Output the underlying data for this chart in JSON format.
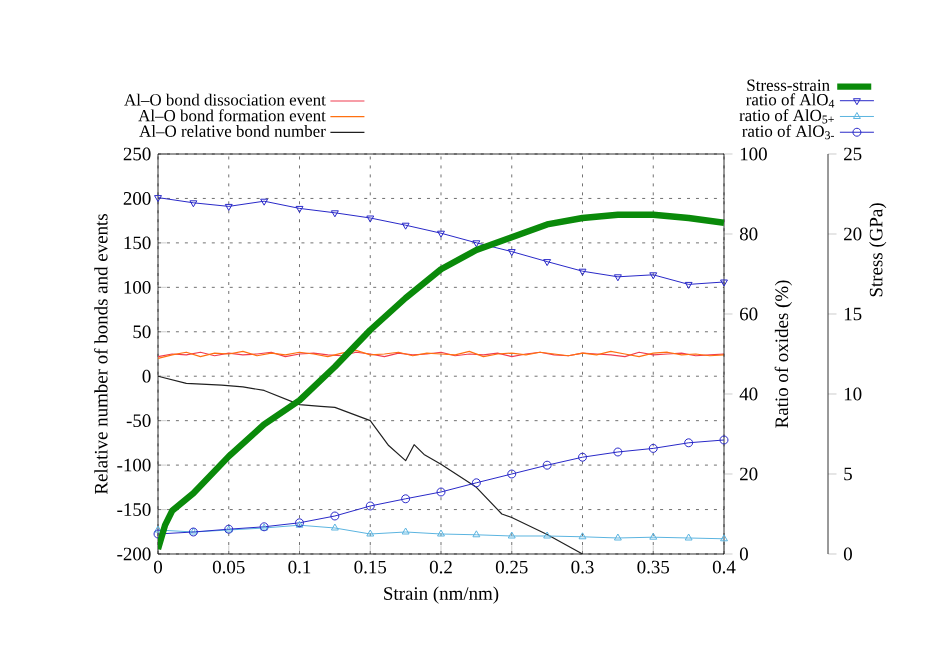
{
  "chart_data": {
    "type": "line",
    "xlabel": "Strain (nm/nm)",
    "ylabel": "Relative number of bonds and events",
    "y2label": "Ratio of oxides (%)",
    "y3label": "Stress (GPa)",
    "xlim": [
      0,
      0.4
    ],
    "xticks": [
      0,
      0.05,
      0.1,
      0.15,
      0.2,
      0.25,
      0.3,
      0.35,
      0.4
    ],
    "ylim": [
      -200,
      250
    ],
    "yticks": [
      -200,
      -150,
      -100,
      -50,
      0,
      50,
      100,
      150,
      200,
      250
    ],
    "y2lim": [
      0,
      100
    ],
    "y2ticks": [
      0,
      20,
      40,
      60,
      80,
      100
    ],
    "y3lim": [
      0,
      25
    ],
    "y3ticks": [
      0,
      5,
      10,
      15,
      20,
      25
    ],
    "grid": true,
    "legend": "top",
    "series": [
      {
        "name": "Al–O bond dissociation event",
        "color": "#f03c50",
        "marker": "none",
        "x": [
          0,
          0.01,
          0.02,
          0.03,
          0.04,
          0.05,
          0.06,
          0.07,
          0.08,
          0.09,
          0.1,
          0.11,
          0.12,
          0.13,
          0.14,
          0.15,
          0.16,
          0.17,
          0.18,
          0.19,
          0.2,
          0.21,
          0.22,
          0.23,
          0.24,
          0.25,
          0.26,
          0.27,
          0.28,
          0.29,
          0.3,
          0.31,
          0.32,
          0.33,
          0.34,
          0.35,
          0.36,
          0.37,
          0.38,
          0.39,
          0.4
        ],
        "values": [
          22,
          25,
          24,
          27,
          23,
          26,
          24,
          25,
          27,
          22,
          25,
          26,
          24,
          23,
          27,
          25,
          22,
          26,
          24,
          25,
          27,
          23,
          25,
          24,
          26,
          22,
          25,
          27,
          24,
          23,
          26,
          25,
          24,
          22,
          27,
          24,
          25,
          26,
          23,
          24,
          25
        ]
      },
      {
        "name": "Al–O bond formation event",
        "color": "#ff7010",
        "marker": "none",
        "x": [
          0,
          0.01,
          0.02,
          0.03,
          0.04,
          0.05,
          0.06,
          0.07,
          0.08,
          0.09,
          0.1,
          0.11,
          0.12,
          0.13,
          0.14,
          0.15,
          0.16,
          0.17,
          0.18,
          0.19,
          0.2,
          0.21,
          0.22,
          0.23,
          0.24,
          0.25,
          0.26,
          0.27,
          0.28,
          0.29,
          0.3,
          0.31,
          0.32,
          0.33,
          0.34,
          0.35,
          0.36,
          0.37,
          0.38,
          0.39,
          0.4
        ],
        "values": [
          20,
          24,
          27,
          22,
          26,
          25,
          28,
          23,
          26,
          24,
          27,
          25,
          22,
          26,
          29,
          24,
          25,
          27,
          23,
          26,
          25,
          24,
          28,
          22,
          25,
          26,
          24,
          27,
          25,
          23,
          26,
          24,
          28,
          25,
          22,
          26,
          27,
          24,
          25,
          23,
          24
        ]
      },
      {
        "name": "Al–O relative bond number",
        "color": "#202020",
        "marker": "none",
        "x": [
          0,
          0.02,
          0.045,
          0.06,
          0.075,
          0.1,
          0.115,
          0.125,
          0.15,
          0.163,
          0.175,
          0.181,
          0.188,
          0.2,
          0.225,
          0.243,
          0.25,
          0.275,
          0.3
        ],
        "values": [
          0,
          -8,
          -10,
          -12,
          -16,
          -32,
          -34,
          -35,
          -50,
          -78,
          -95,
          -77,
          -88,
          -99,
          -125,
          -155,
          -159,
          -178,
          -200
        ]
      },
      {
        "name": "ratio of AlO$_{4}$",
        "color": "#2828c8",
        "marker": "triangle",
        "axis": "y2",
        "x": [
          0,
          0.025,
          0.05,
          0.075,
          0.1,
          0.125,
          0.15,
          0.175,
          0.2,
          0.225,
          0.25,
          0.275,
          0.3,
          0.325,
          0.35,
          0.375,
          0.4
        ],
        "values": [
          89.1,
          87.8,
          86.9,
          88.2,
          86.4,
          85.3,
          84.0,
          82.2,
          80.2,
          77.8,
          75.6,
          73.1,
          70.7,
          69.3,
          69.8,
          67.4,
          68.0
        ]
      },
      {
        "name": "ratio of AlO$_{5+}$",
        "color": "#5ab4e0",
        "marker": "triangle",
        "axis": "y2",
        "x": [
          0,
          0.025,
          0.05,
          0.075,
          0.1,
          0.125,
          0.15,
          0.175,
          0.2,
          0.225,
          0.25,
          0.275,
          0.3,
          0.325,
          0.35,
          0.375,
          0.4
        ],
        "values": [
          6.0,
          5.5,
          6.0,
          6.5,
          7.2,
          6.5,
          5.0,
          5.5,
          5.0,
          4.8,
          4.5,
          4.5,
          4.3,
          4.0,
          4.2,
          4.0,
          3.8
        ]
      },
      {
        "name": "ratio of AlO$_{3-}$",
        "color": "#2828c8",
        "marker": "circle",
        "axis": "y2",
        "x": [
          0,
          0.025,
          0.05,
          0.075,
          0.1,
          0.125,
          0.15,
          0.175,
          0.2,
          0.225,
          0.25,
          0.275,
          0.3,
          0.325,
          0.35,
          0.375,
          0.4
        ],
        "values": [
          5.0,
          5.5,
          6.2,
          6.8,
          7.8,
          9.5,
          12.0,
          13.8,
          15.5,
          17.8,
          20.0,
          22.2,
          24.2,
          25.5,
          26.4,
          27.8,
          28.5
        ]
      },
      {
        "name": "Stress-strain",
        "color": "#0a8a0a",
        "marker": "none",
        "axis": "y3",
        "x": [
          0,
          0.005,
          0.01,
          0.025,
          0.05,
          0.075,
          0.1,
          0.125,
          0.15,
          0.175,
          0.2,
          0.225,
          0.25,
          0.275,
          0.3,
          0.325,
          0.35,
          0.375,
          0.4
        ],
        "values": [
          0.3,
          1.8,
          2.7,
          3.8,
          6.1,
          8.1,
          9.6,
          11.7,
          14.0,
          16.0,
          17.8,
          19.0,
          19.8,
          20.6,
          21.0,
          21.2,
          21.2,
          21.0,
          20.7
        ]
      }
    ]
  }
}
